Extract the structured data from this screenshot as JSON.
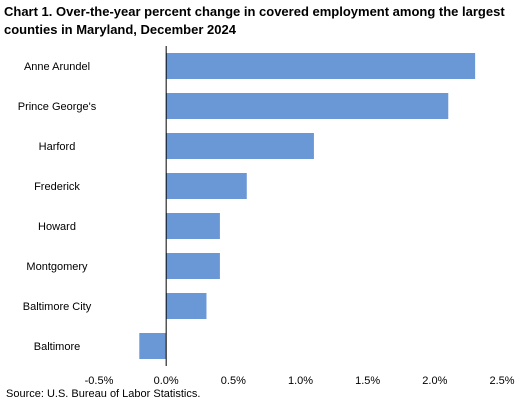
{
  "chart_data": {
    "type": "bar",
    "orientation": "horizontal",
    "title": "Chart 1. Over-the-year percent change in covered employment among the largest counties in Maryland, December 2024",
    "categories": [
      "Anne Arundel",
      "Prince George's",
      "Harford",
      "Frederick",
      "Howard",
      "Montgomery",
      "Baltimore City",
      "Baltimore"
    ],
    "values": [
      2.3,
      2.1,
      1.1,
      0.6,
      0.4,
      0.4,
      0.3,
      -0.2
    ],
    "xlim": [
      -0.5,
      2.5
    ],
    "xticks": [
      -0.5,
      0.0,
      0.5,
      1.0,
      1.5,
      2.0,
      2.5
    ],
    "xtick_labels": [
      "-0.5%",
      "0.0%",
      "0.5%",
      "1.0%",
      "1.5%",
      "2.0%",
      "2.5%"
    ],
    "xlabel": "",
    "ylabel": "",
    "grid": false,
    "legend": "none",
    "bar_color": "#6a97d6",
    "source": "Source: U.S. Bureau of Labor Statistics."
  }
}
